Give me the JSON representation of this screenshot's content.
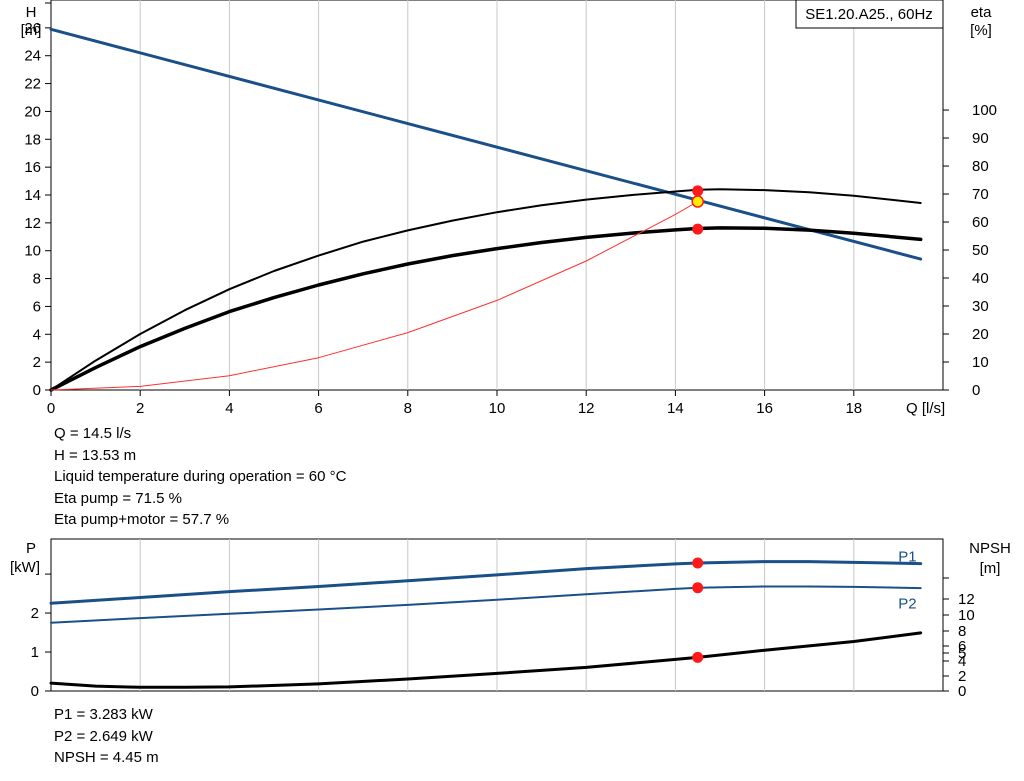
{
  "chart_data": [
    {
      "type": "line",
      "title": "SE1.20.A25., 60Hz",
      "xlabel": "Q [l/s]",
      "ylabel_left": [
        "H",
        "[m]"
      ],
      "ylabel_right": [
        "eta",
        "[%]"
      ],
      "xlim": [
        0,
        20
      ],
      "ylim": [
        0,
        28
      ],
      "eta_lim": [
        0,
        100
      ],
      "grid": true,
      "x_ticks": [
        "0",
        "2",
        "4",
        "6",
        "8",
        "10",
        "12",
        "14",
        "16",
        "18"
      ],
      "y_ticks": [
        "0",
        "2",
        "4",
        "6",
        "8",
        "10",
        "12",
        "14",
        "16",
        "18",
        "20",
        "22",
        "24",
        "26"
      ],
      "eta_ticks": [
        "0",
        "10",
        "20",
        "30",
        "40",
        "50",
        "60",
        "70",
        "80",
        "90",
        "100"
      ],
      "series": [
        {
          "axis": "H",
          "color": "#1a4f8a",
          "width": 3,
          "x": [
            0,
            19.5
          ],
          "y": [
            25.9,
            9.4
          ]
        },
        {
          "axis": "eta",
          "color": "#000000",
          "width": 2,
          "x": [
            0,
            1,
            2,
            3,
            4,
            5,
            6,
            7,
            8,
            9,
            10,
            11,
            12,
            13,
            14,
            14.5,
            15,
            16,
            17,
            18,
            19.5
          ],
          "y": [
            0,
            10.5,
            20,
            28.5,
            36,
            42.5,
            48,
            53,
            57,
            60.5,
            63.5,
            66,
            68,
            69.6,
            70.9,
            71.5,
            71.7,
            71.4,
            70.6,
            69.4,
            66.8
          ]
        },
        {
          "axis": "eta",
          "color": "#000000",
          "width": 3.5,
          "x": [
            0,
            1,
            2,
            3,
            4,
            5,
            6,
            7,
            8,
            9,
            10,
            11,
            12,
            13,
            14,
            14.5,
            15,
            16,
            17,
            18,
            19.5
          ],
          "y": [
            0,
            8,
            15.5,
            22,
            28,
            33,
            37.5,
            41.5,
            45,
            48,
            50.5,
            52.7,
            54.5,
            56,
            57.2,
            57.7,
            57.9,
            57.8,
            57.1,
            56,
            53.8
          ]
        },
        {
          "axis": "H",
          "color": "#ff3030",
          "width": 1,
          "x": [
            0,
            2,
            4,
            6,
            8,
            10,
            12,
            14,
            14.5
          ],
          "y": [
            0,
            0.26,
            1.03,
            2.32,
            4.12,
            6.43,
            9.26,
            12.61,
            13.53
          ]
        }
      ],
      "points": [
        {
          "x": 14.5,
          "y": 14.3,
          "color": "#ff1a1a"
        },
        {
          "x": 14.5,
          "y": 11.55,
          "color": "#ff1a1a"
        },
        {
          "x": 14.5,
          "y": 13.53,
          "color": "#ffee00",
          "stroke": "#ff1a1a"
        }
      ]
    },
    {
      "type": "line",
      "ylabel_left": [
        "P",
        "[kW]"
      ],
      "ylabel_right": [
        "NPSH",
        "[m]"
      ],
      "xlim": [
        0,
        20
      ],
      "ylim": [
        0,
        3.9
      ],
      "npsh_lim": [
        0,
        30
      ],
      "grid": true,
      "y_ticks": [
        "0",
        "1",
        "2"
      ],
      "npsh_ticks": [
        "0",
        "2",
        "4",
        "5",
        "6",
        "8",
        "10",
        "12"
      ],
      "series": [
        {
          "name": "P1",
          "axis": "P",
          "color": "#1a4f8a",
          "width": 3,
          "x": [
            0,
            2,
            4,
            6,
            8,
            10,
            12,
            14,
            14.5,
            16,
            17,
            18,
            19.5
          ],
          "y": [
            2.25,
            2.4,
            2.55,
            2.68,
            2.83,
            2.98,
            3.14,
            3.26,
            3.283,
            3.32,
            3.32,
            3.3,
            3.27
          ]
        },
        {
          "name": "P2",
          "axis": "P",
          "color": "#1a4f8a",
          "width": 2,
          "x": [
            0,
            2,
            4,
            6,
            8,
            10,
            12,
            14,
            14.5,
            16,
            17,
            18,
            19.5
          ],
          "y": [
            1.75,
            1.87,
            1.98,
            2.09,
            2.21,
            2.34,
            2.48,
            2.62,
            2.649,
            2.68,
            2.68,
            2.67,
            2.64
          ]
        },
        {
          "name": "NPSH",
          "axis": "NPSH",
          "color": "#000000",
          "width": 3,
          "x": [
            0,
            1,
            2,
            3,
            4,
            6,
            8,
            10,
            12,
            14.5,
            16,
            18,
            19.5
          ],
          "y": [
            1.05,
            0.65,
            0.5,
            0.5,
            0.55,
            0.95,
            1.6,
            2.35,
            3.15,
            4.45,
            5.4,
            6.6,
            7.75
          ]
        }
      ],
      "points": [
        {
          "x": 14.5,
          "y": 3.283,
          "axis": "P",
          "color": "#ff1a1a"
        },
        {
          "x": 14.5,
          "y": 2.649,
          "axis": "P",
          "color": "#ff1a1a"
        },
        {
          "x": 14.5,
          "y": 4.45,
          "axis": "NPSH",
          "color": "#ff1a1a"
        }
      ],
      "labels": [
        {
          "text": "P1",
          "x": 19.0,
          "y": 3.45,
          "color": "#1a4f8a"
        },
        {
          "text": "P2",
          "x": 19.0,
          "y": 2.25,
          "color": "#1a4f8a"
        }
      ]
    }
  ],
  "info_top": [
    "Q = 14.5 l/s",
    "H = 13.53 m",
    "Liquid temperature during operation = 60 °C",
    "Eta pump = 71.5 %",
    "Eta pump+motor = 57.7 %"
  ],
  "info_bottom": [
    "P1 = 3.283 kW",
    "P2 = 2.649 kW",
    "NPSH = 4.45 m"
  ]
}
